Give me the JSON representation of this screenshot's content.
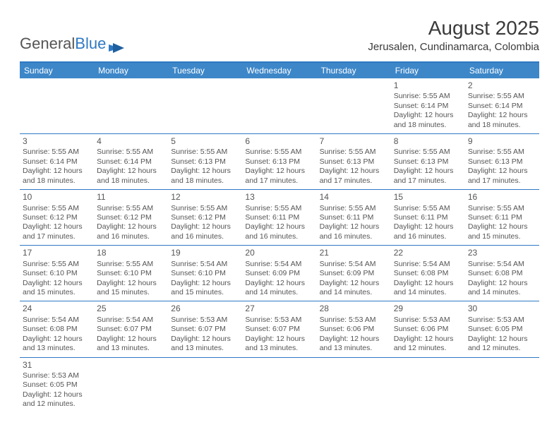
{
  "logo": {
    "part1": "General",
    "part2": "Blue"
  },
  "title": "August 2025",
  "location": "Jerusalen, Cundinamarca, Colombia",
  "colors": {
    "header_bg": "#3d87c9",
    "border": "#2f79c3",
    "text": "#555555",
    "title_text": "#3a3a3a",
    "background": "#ffffff"
  },
  "typography": {
    "title_fontsize": 28,
    "location_fontsize": 15,
    "dayhead_fontsize": 12,
    "cell_fontsize": 10.5,
    "daynum_fontsize": 12
  },
  "day_names": [
    "Sunday",
    "Monday",
    "Tuesday",
    "Wednesday",
    "Thursday",
    "Friday",
    "Saturday"
  ],
  "weeks": [
    [
      null,
      null,
      null,
      null,
      null,
      {
        "n": "1",
        "sr": "5:55 AM",
        "ss": "6:14 PM",
        "dl": "12 hours and 18 minutes."
      },
      {
        "n": "2",
        "sr": "5:55 AM",
        "ss": "6:14 PM",
        "dl": "12 hours and 18 minutes."
      }
    ],
    [
      {
        "n": "3",
        "sr": "5:55 AM",
        "ss": "6:14 PM",
        "dl": "12 hours and 18 minutes."
      },
      {
        "n": "4",
        "sr": "5:55 AM",
        "ss": "6:14 PM",
        "dl": "12 hours and 18 minutes."
      },
      {
        "n": "5",
        "sr": "5:55 AM",
        "ss": "6:13 PM",
        "dl": "12 hours and 18 minutes."
      },
      {
        "n": "6",
        "sr": "5:55 AM",
        "ss": "6:13 PM",
        "dl": "12 hours and 17 minutes."
      },
      {
        "n": "7",
        "sr": "5:55 AM",
        "ss": "6:13 PM",
        "dl": "12 hours and 17 minutes."
      },
      {
        "n": "8",
        "sr": "5:55 AM",
        "ss": "6:13 PM",
        "dl": "12 hours and 17 minutes."
      },
      {
        "n": "9",
        "sr": "5:55 AM",
        "ss": "6:13 PM",
        "dl": "12 hours and 17 minutes."
      }
    ],
    [
      {
        "n": "10",
        "sr": "5:55 AM",
        "ss": "6:12 PM",
        "dl": "12 hours and 17 minutes."
      },
      {
        "n": "11",
        "sr": "5:55 AM",
        "ss": "6:12 PM",
        "dl": "12 hours and 16 minutes."
      },
      {
        "n": "12",
        "sr": "5:55 AM",
        "ss": "6:12 PM",
        "dl": "12 hours and 16 minutes."
      },
      {
        "n": "13",
        "sr": "5:55 AM",
        "ss": "6:11 PM",
        "dl": "12 hours and 16 minutes."
      },
      {
        "n": "14",
        "sr": "5:55 AM",
        "ss": "6:11 PM",
        "dl": "12 hours and 16 minutes."
      },
      {
        "n": "15",
        "sr": "5:55 AM",
        "ss": "6:11 PM",
        "dl": "12 hours and 16 minutes."
      },
      {
        "n": "16",
        "sr": "5:55 AM",
        "ss": "6:11 PM",
        "dl": "12 hours and 15 minutes."
      }
    ],
    [
      {
        "n": "17",
        "sr": "5:55 AM",
        "ss": "6:10 PM",
        "dl": "12 hours and 15 minutes."
      },
      {
        "n": "18",
        "sr": "5:55 AM",
        "ss": "6:10 PM",
        "dl": "12 hours and 15 minutes."
      },
      {
        "n": "19",
        "sr": "5:54 AM",
        "ss": "6:10 PM",
        "dl": "12 hours and 15 minutes."
      },
      {
        "n": "20",
        "sr": "5:54 AM",
        "ss": "6:09 PM",
        "dl": "12 hours and 14 minutes."
      },
      {
        "n": "21",
        "sr": "5:54 AM",
        "ss": "6:09 PM",
        "dl": "12 hours and 14 minutes."
      },
      {
        "n": "22",
        "sr": "5:54 AM",
        "ss": "6:08 PM",
        "dl": "12 hours and 14 minutes."
      },
      {
        "n": "23",
        "sr": "5:54 AM",
        "ss": "6:08 PM",
        "dl": "12 hours and 14 minutes."
      }
    ],
    [
      {
        "n": "24",
        "sr": "5:54 AM",
        "ss": "6:08 PM",
        "dl": "12 hours and 13 minutes."
      },
      {
        "n": "25",
        "sr": "5:54 AM",
        "ss": "6:07 PM",
        "dl": "12 hours and 13 minutes."
      },
      {
        "n": "26",
        "sr": "5:53 AM",
        "ss": "6:07 PM",
        "dl": "12 hours and 13 minutes."
      },
      {
        "n": "27",
        "sr": "5:53 AM",
        "ss": "6:07 PM",
        "dl": "12 hours and 13 minutes."
      },
      {
        "n": "28",
        "sr": "5:53 AM",
        "ss": "6:06 PM",
        "dl": "12 hours and 13 minutes."
      },
      {
        "n": "29",
        "sr": "5:53 AM",
        "ss": "6:06 PM",
        "dl": "12 hours and 12 minutes."
      },
      {
        "n": "30",
        "sr": "5:53 AM",
        "ss": "6:05 PM",
        "dl": "12 hours and 12 minutes."
      }
    ],
    [
      {
        "n": "31",
        "sr": "5:53 AM",
        "ss": "6:05 PM",
        "dl": "12 hours and 12 minutes."
      },
      null,
      null,
      null,
      null,
      null,
      null
    ]
  ],
  "labels": {
    "sunrise": "Sunrise:",
    "sunset": "Sunset:",
    "daylight": "Daylight:"
  }
}
